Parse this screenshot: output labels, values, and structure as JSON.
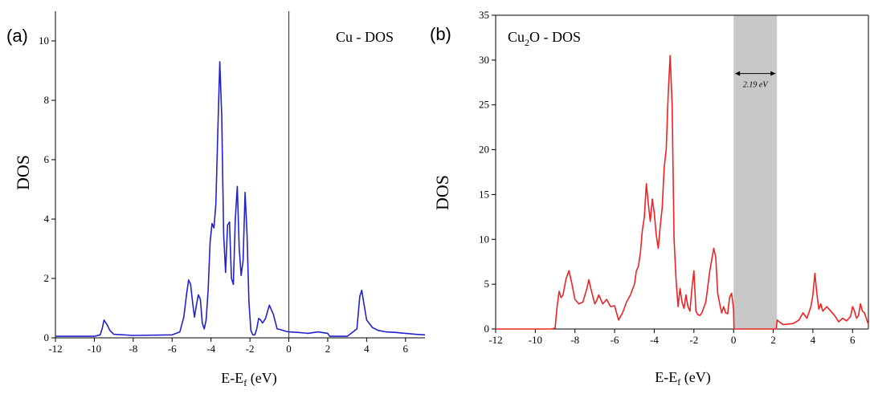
{
  "chart_data": [
    {
      "type": "line",
      "panel_label": "(a)",
      "title": "Cu - DOS",
      "title_parts": {
        "main": "Cu - DOS"
      },
      "xlabel": "E-E",
      "xlabel_sub": "f",
      "xlabel_unit": " (eV)",
      "ylabel": "DOS",
      "xlim": [
        -12,
        7
      ],
      "ylim": [
        0,
        11
      ],
      "xticks": [
        "-12",
        "-10",
        "-8",
        "-6",
        "-4",
        "-2",
        "0",
        "2",
        "4",
        "6"
      ],
      "yticks": [
        "0",
        "2",
        "4",
        "6",
        "8",
        "10"
      ],
      "vline_x": 0,
      "series": [
        {
          "color": "#2222cc",
          "x": [
            -12,
            -10,
            -9.7,
            -9.6,
            -9.5,
            -9.35,
            -9.2,
            -9.0,
            -8,
            -6,
            -5.6,
            -5.4,
            -5.25,
            -5.15,
            -5.05,
            -4.95,
            -4.85,
            -4.75,
            -4.65,
            -4.55,
            -4.45,
            -4.35,
            -4.25,
            -4.15,
            -4.05,
            -3.95,
            -3.85,
            -3.75,
            -3.65,
            -3.55,
            -3.45,
            -3.35,
            -3.25,
            -3.15,
            -3.05,
            -2.95,
            -2.85,
            -2.75,
            -2.65,
            -2.55,
            -2.45,
            -2.35,
            -2.25,
            -2.15,
            -2.05,
            -1.95,
            -1.85,
            -1.75,
            -1.65,
            -1.55,
            -1.45,
            -1.35,
            -1.2,
            -1.0,
            -0.8,
            -0.6,
            -0.45,
            -0.3,
            -0.15,
            0.0,
            0.5,
            1.0,
            1.5,
            2.0,
            2.1,
            2.3,
            3.0,
            3.5,
            3.65,
            3.75,
            3.85,
            4.0,
            4.3,
            4.6,
            5.0,
            5.5,
            6.0,
            6.5,
            7.0
          ],
          "values": [
            0.05,
            0.05,
            0.1,
            0.3,
            0.6,
            0.45,
            0.25,
            0.12,
            0.08,
            0.1,
            0.2,
            0.7,
            1.5,
            1.95,
            1.8,
            1.2,
            0.7,
            1.1,
            1.45,
            1.3,
            0.5,
            0.3,
            0.6,
            1.6,
            3.2,
            3.85,
            3.7,
            4.5,
            7.0,
            9.3,
            7.5,
            3.5,
            2.2,
            3.8,
            3.9,
            2.0,
            1.8,
            4.0,
            5.1,
            3.0,
            2.1,
            2.6,
            4.9,
            3.5,
            1.2,
            0.25,
            0.1,
            0.1,
            0.3,
            0.65,
            0.6,
            0.5,
            0.65,
            1.1,
            0.8,
            0.3,
            0.28,
            0.25,
            0.22,
            0.2,
            0.18,
            0.15,
            0.2,
            0.15,
            0.05,
            0.05,
            0.05,
            0.3,
            1.4,
            1.6,
            1.2,
            0.6,
            0.35,
            0.25,
            0.2,
            0.18,
            0.15,
            0.12,
            0.1
          ]
        }
      ]
    },
    {
      "type": "line",
      "panel_label": "(b)",
      "title_parts": {
        "main": "Cu",
        "sub": "2",
        "rest": "O - DOS"
      },
      "xlabel": "E-E",
      "xlabel_sub": "f",
      "xlabel_unit": " (eV)",
      "ylabel": "DOS",
      "xlim": [
        -12,
        6.8
      ],
      "ylim": [
        0,
        35
      ],
      "xticks": [
        "-12",
        "-10",
        "-8",
        "-6",
        "-4",
        "-2",
        "0",
        "2",
        "4",
        "6"
      ],
      "yticks": [
        "0",
        "5",
        "10",
        "15",
        "20",
        "25",
        "30",
        "35"
      ],
      "band_gap": {
        "from": 0,
        "to": 2.19,
        "label": "2.19 eV",
        "y": 28.5,
        "color": "#c8c8c8"
      },
      "series": [
        {
          "color": "#ee2222",
          "x": [
            -12,
            -9.2,
            -9.0,
            -8.9,
            -8.8,
            -8.7,
            -8.6,
            -8.45,
            -8.3,
            -8.15,
            -8.0,
            -7.8,
            -7.6,
            -7.4,
            -7.3,
            -7.2,
            -7.0,
            -6.9,
            -6.8,
            -6.6,
            -6.4,
            -6.2,
            -6.0,
            -5.8,
            -5.6,
            -5.4,
            -5.2,
            -5.0,
            -4.9,
            -4.8,
            -4.7,
            -4.6,
            -4.5,
            -4.4,
            -4.3,
            -4.2,
            -4.1,
            -4.0,
            -3.9,
            -3.8,
            -3.7,
            -3.6,
            -3.5,
            -3.4,
            -3.3,
            -3.2,
            -3.1,
            -3.0,
            -2.9,
            -2.8,
            -2.7,
            -2.6,
            -2.5,
            -2.4,
            -2.3,
            -2.2,
            -2.1,
            -2.0,
            -1.9,
            -1.8,
            -1.7,
            -1.6,
            -1.4,
            -1.2,
            -1.0,
            -0.9,
            -0.8,
            -0.7,
            -0.6,
            -0.5,
            -0.4,
            -0.3,
            -0.2,
            -0.1,
            0.0,
            0.02,
            2.15,
            2.2,
            2.3,
            2.5,
            3.0,
            3.3,
            3.5,
            3.7,
            3.9,
            4.0,
            4.1,
            4.2,
            4.3,
            4.4,
            4.5,
            4.7,
            4.9,
            5.1,
            5.3,
            5.5,
            5.7,
            5.9,
            6.0,
            6.1,
            6.2,
            6.3,
            6.4,
            6.5,
            6.6,
            6.8
          ],
          "values": [
            0,
            0,
            0.1,
            2.5,
            4.2,
            3.5,
            3.8,
            5.6,
            6.5,
            5.0,
            3.3,
            2.8,
            3.0,
            4.5,
            5.5,
            4.5,
            2.8,
            3.2,
            3.8,
            2.8,
            3.3,
            2.5,
            2.6,
            1.0,
            1.8,
            3.0,
            3.8,
            5.0,
            6.5,
            7.0,
            8.5,
            11.0,
            12.5,
            16.2,
            14.0,
            12.0,
            14.5,
            13.0,
            10.5,
            9.0,
            11.5,
            13.5,
            18.0,
            20.0,
            26.0,
            30.5,
            25.0,
            10.0,
            5.5,
            2.5,
            4.5,
            3.0,
            2.3,
            3.8,
            2.5,
            2.0,
            4.5,
            6.5,
            2.0,
            1.6,
            1.5,
            1.8,
            3.0,
            6.5,
            9.0,
            8.0,
            4.0,
            2.8,
            1.8,
            2.5,
            1.8,
            1.7,
            3.5,
            4.0,
            2.2,
            0,
            0,
            1.0,
            0.8,
            0.5,
            0.6,
            1.0,
            1.8,
            1.2,
            2.5,
            3.8,
            6.2,
            4.0,
            2.2,
            2.8,
            2.0,
            2.5,
            2.0,
            1.5,
            0.8,
            1.2,
            0.9,
            1.4,
            2.5,
            2.0,
            1.2,
            1.5,
            2.8,
            2.0,
            1.8,
            0.5
          ]
        }
      ]
    }
  ]
}
